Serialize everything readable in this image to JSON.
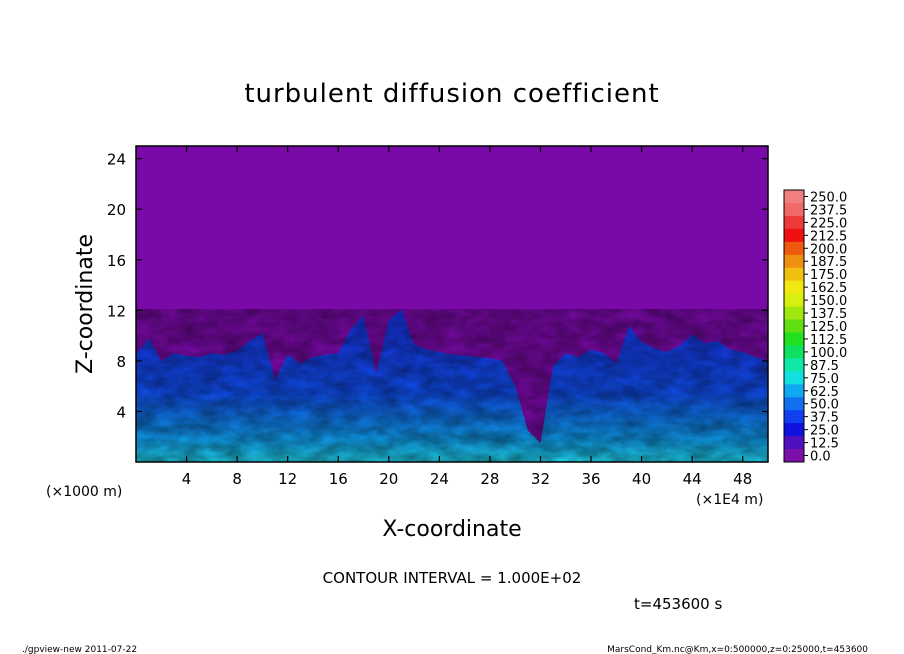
{
  "chart_data": {
    "type": "heatmap",
    "title": "turbulent diffusion coefficient",
    "xlabel": "X-coordinate",
    "ylabel": "Z-coordinate",
    "x_unit_left": "(×1000 m)",
    "x_unit_right": "(×1E4 m)",
    "xlim": [
      0,
      50
    ],
    "ylim": [
      0,
      25
    ],
    "x_ticks": [
      4,
      8,
      12,
      16,
      20,
      24,
      28,
      32,
      36,
      40,
      44,
      48
    ],
    "y_ticks": [
      4,
      8,
      12,
      16,
      20,
      24
    ],
    "colorbar": {
      "levels": [
        "250.0",
        "237.5",
        "225.0",
        "212.5",
        "200.0",
        "187.5",
        "175.0",
        "162.5",
        "150.0",
        "137.5",
        "125.0",
        "112.5",
        "100.0",
        "87.5",
        "75.0",
        "62.5",
        "50.0",
        "37.5",
        "25.0",
        "12.5",
        "0.0"
      ],
      "colors": [
        "#f08080",
        "#f06a6a",
        "#ee3a3a",
        "#f01010",
        "#f05a10",
        "#f09010",
        "#f0c010",
        "#f0e810",
        "#d8f010",
        "#a0e810",
        "#60e010",
        "#20e020",
        "#10e060",
        "#10e8a8",
        "#10e0e0",
        "#10a8f0",
        "#1070f0",
        "#1040f0",
        "#1010e0",
        "#5010c0",
        "#7a10a8"
      ]
    },
    "contour_interval": "CONTOUR INTERVAL = 1.000E+02",
    "time_label": "t=453600 s",
    "footer_left": "./gpview-new  2011-07-22",
    "footer_right": "MarsCond_Km.nc@Km,x=0:500000,z=0:25000,t=453600",
    "background_value_color": "#7a0aa8",
    "turbulent_layer_top_profile_x": [
      0,
      1,
      2,
      3,
      4,
      5,
      6,
      7,
      8,
      9,
      10,
      11,
      12,
      13,
      14,
      15,
      16,
      17,
      18,
      19,
      20,
      21,
      22,
      23,
      24,
      25,
      26,
      27,
      28,
      29,
      30,
      31,
      32,
      33,
      34,
      35,
      36,
      37,
      38,
      39,
      40,
      41,
      42,
      43,
      44,
      45,
      46,
      47,
      48,
      49,
      50
    ],
    "turbulent_layer_top_profile_z": [
      8.5,
      9.8,
      8.0,
      8.6,
      8.4,
      8.3,
      8.6,
      8.5,
      8.8,
      9.6,
      10.2,
      6.5,
      8.5,
      7.8,
      8.3,
      8.5,
      8.6,
      10.5,
      11.6,
      7.0,
      11.2,
      12.1,
      9.3,
      8.9,
      8.7,
      8.5,
      8.4,
      8.3,
      8.2,
      8.0,
      6.0,
      2.5,
      1.5,
      7.6,
      8.6,
      8.3,
      8.9,
      8.6,
      7.8,
      10.8,
      9.5,
      9.0,
      8.7,
      9.2,
      10.1,
      9.4,
      9.6,
      8.9,
      8.7,
      8.3,
      8.0
    ]
  }
}
